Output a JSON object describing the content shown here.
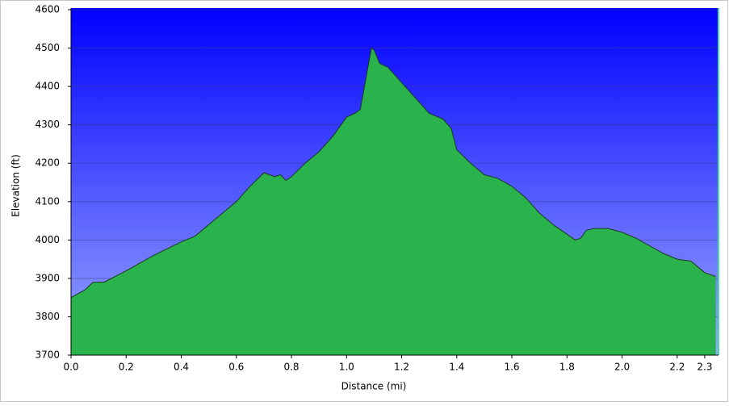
{
  "chart_data": {
    "type": "area",
    "x_label": "Distance (mi)",
    "y_label": "Elevation (ft)",
    "x": [
      0,
      0.05,
      0.08,
      0.12,
      0.2,
      0.25,
      0.3,
      0.4,
      0.45,
      0.5,
      0.6,
      0.65,
      0.7,
      0.72,
      0.74,
      0.76,
      0.78,
      0.8,
      0.85,
      0.9,
      0.95,
      1.0,
      1.03,
      1.05,
      1.07,
      1.09,
      1.1,
      1.12,
      1.15,
      1.2,
      1.25,
      1.3,
      1.35,
      1.38,
      1.4,
      1.45,
      1.5,
      1.55,
      1.6,
      1.65,
      1.7,
      1.75,
      1.8,
      1.83,
      1.85,
      1.87,
      1.9,
      1.95,
      2.0,
      2.05,
      2.1,
      2.15,
      2.2,
      2.25,
      2.3,
      2.34
    ],
    "values": [
      3850,
      3870,
      3890,
      3890,
      3920,
      3940,
      3960,
      3995,
      4010,
      4040,
      4100,
      4140,
      4175,
      4170,
      4165,
      4170,
      4155,
      4165,
      4200,
      4230,
      4270,
      4320,
      4330,
      4340,
      4420,
      4500,
      4495,
      4460,
      4450,
      4410,
      4370,
      4330,
      4315,
      4290,
      4235,
      4200,
      4170,
      4160,
      4140,
      4110,
      4070,
      4040,
      4015,
      4000,
      4005,
      4025,
      4030,
      4030,
      4020,
      4005,
      3985,
      3965,
      3950,
      3945,
      3915,
      3905
    ],
    "color": "#22a444",
    "xlim": [
      0,
      2.35
    ],
    "xticks": [
      {
        "value": 0,
        "label": "0.0"
      },
      0.2,
      0.4,
      0.6,
      0.8,
      {
        "value": 1,
        "label": "1.0"
      },
      1.2,
      1.4,
      1.6,
      1.8,
      {
        "value": 2,
        "label": "2.0"
      },
      2.2,
      2.3
    ],
    "ylim": [
      3700,
      4600
    ],
    "yticks": [
      3700,
      3800,
      3900,
      4000,
      4100,
      4200,
      4300,
      4400,
      4500,
      4600
    ],
    "grid": true
  }
}
